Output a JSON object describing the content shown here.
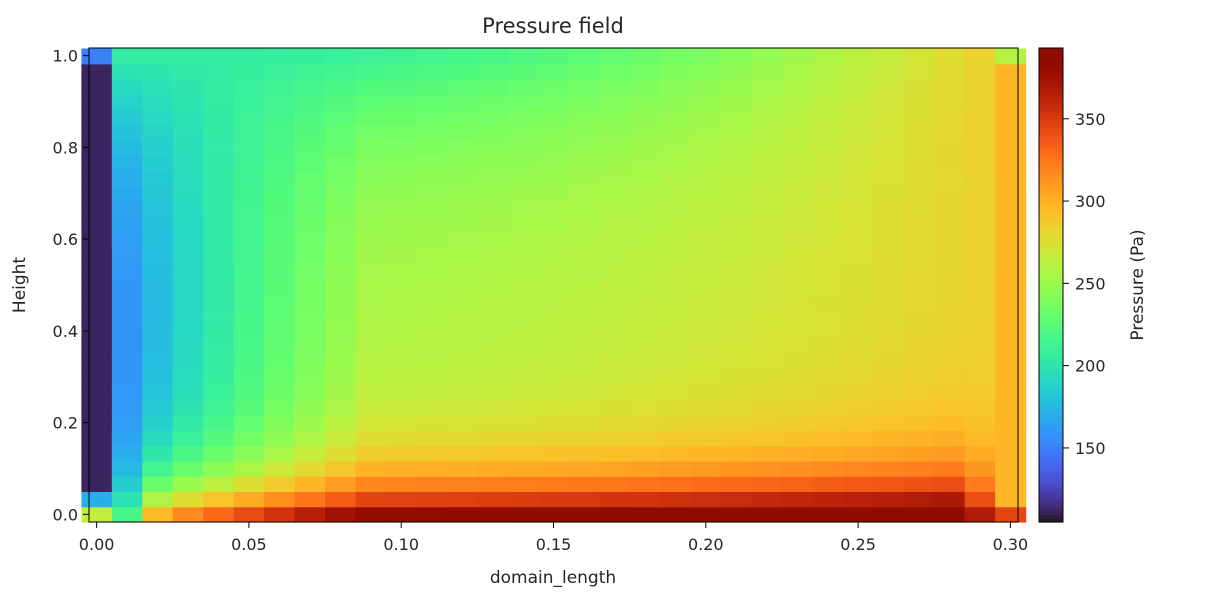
{
  "chart_data": {
    "type": "heatmap",
    "title": "Pressure field",
    "xlabel": "domain_length",
    "ylabel": "Height",
    "xlim": [
      -0.0025,
      0.3025
    ],
    "ylim": [
      -0.0167,
      1.0167
    ],
    "x_ticks": [
      0.0,
      0.05,
      0.1,
      0.15,
      0.2,
      0.25,
      0.3
    ],
    "x_tick_labels": [
      "0.00",
      "0.05",
      "0.10",
      "0.15",
      "0.20",
      "0.25",
      "0.30"
    ],
    "y_ticks": [
      0.0,
      0.2,
      0.4,
      0.6,
      0.8,
      1.0
    ],
    "y_tick_labels": [
      "0.0",
      "0.2",
      "0.4",
      "0.6",
      "0.8",
      "1.0"
    ],
    "colorbar": {
      "label": "Pressure (Pa)",
      "colormap": "turbo",
      "range": [
        105,
        393
      ],
      "ticks": [
        150,
        200,
        250,
        300,
        350
      ],
      "tick_labels": [
        "150",
        "200",
        "250",
        "300",
        "350"
      ]
    },
    "grid": {
      "nx": 31,
      "ny": 31,
      "x_start": 0.0,
      "x_step": 0.01,
      "y_start": 0.0,
      "y_step": 0.0333
    },
    "field_profile": {
      "left_wall_value": 112,
      "right_wall_value": 298,
      "top_lid_value": 205,
      "bottom_peak_value": 392,
      "interior_base_value": 255
    },
    "grid_lines": false,
    "colorbar_position": "right"
  }
}
